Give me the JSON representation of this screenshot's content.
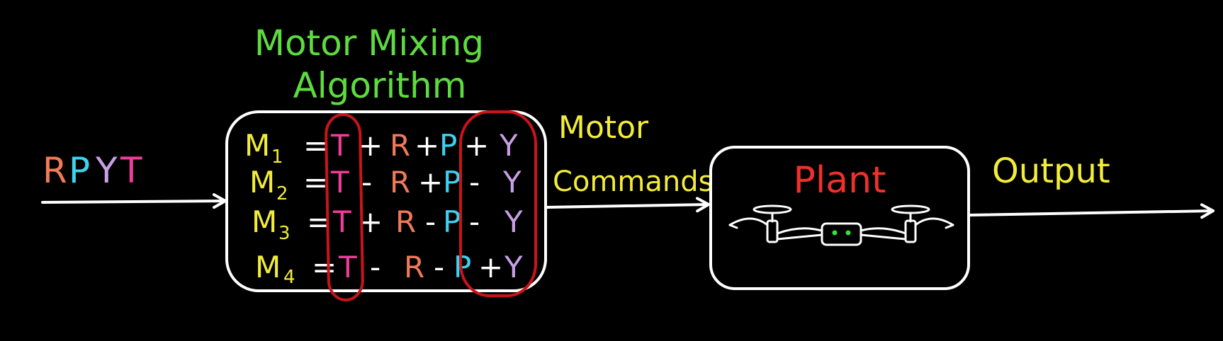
{
  "title": {
    "line1": "Motor Mixing",
    "line2": "Algorithm"
  },
  "input_label": {
    "letters": [
      {
        "text": "R",
        "color": "#f07a5a"
      },
      {
        "text": "P",
        "color": "#3cd2f0"
      },
      {
        "text": "Y",
        "color": "#c9a0e8"
      },
      {
        "text": "T",
        "color": "#f03c9a"
      }
    ]
  },
  "mixing_block": {
    "equations": [
      {
        "motor": "M",
        "sub": "1",
        "eq": "=",
        "t": "T",
        "op1": "+",
        "r": "R",
        "op2": "+",
        "p": "P",
        "op3": "+",
        "y": "Y"
      },
      {
        "motor": "M",
        "sub": "2",
        "eq": "=",
        "t": "T",
        "op1": "-",
        "r": "R",
        "op2": "+",
        "p": "P",
        "op3": "-",
        "y": "Y"
      },
      {
        "motor": "M",
        "sub": "3",
        "eq": "=",
        "t": "T",
        "op1": "+",
        "r": "R",
        "op2": "-",
        "p": "P",
        "op3": "-",
        "y": "Y"
      },
      {
        "motor": "M",
        "sub": "4",
        "eq": "=",
        "t": "T",
        "op1": "-",
        "r": "R",
        "op2": "-",
        "p": "P",
        "op3": "+",
        "y": "Y"
      }
    ]
  },
  "motor_commands_label": {
    "line1": "Motor",
    "line2": "Commands"
  },
  "plant": {
    "label": "Plant"
  },
  "output_label": "Output",
  "colors": {
    "background": "#000000",
    "title": "#5ddb3f",
    "labels": "#f2ec3a",
    "plant": "#f0302a",
    "outline": "#ffffff",
    "highlight": "#c8141a",
    "motor_m": "#f2ec3a",
    "roll": "#f07a5a",
    "pitch": "#3cd2f0",
    "yaw": "#c9a0e8",
    "thrust": "#f03c9a",
    "operator": "#ffffff",
    "drone_eyes": "#39e03a"
  },
  "icons": {
    "plant_image": "quadcopter-drone-icon"
  }
}
